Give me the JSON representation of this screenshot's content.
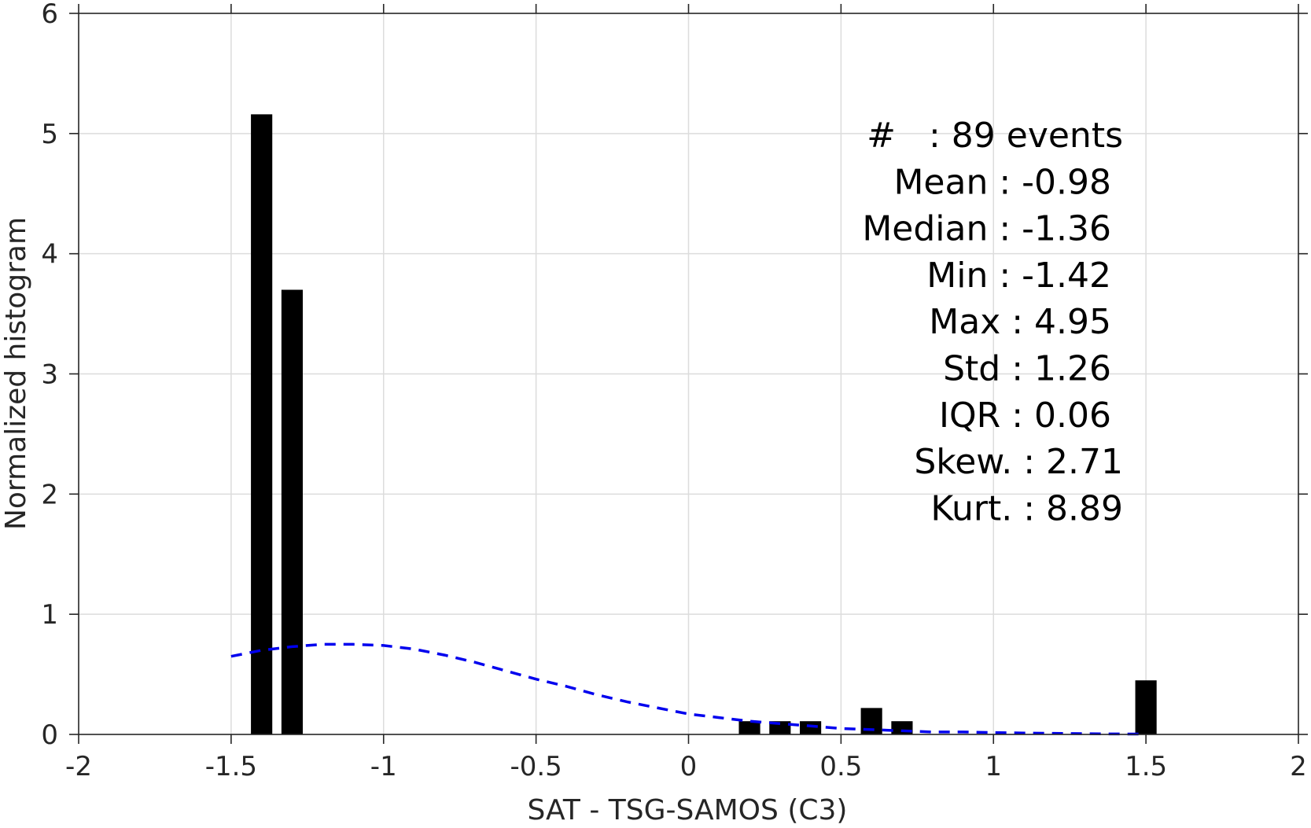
{
  "chart_data": {
    "type": "bar",
    "xlabel": "SAT - TSG-SAMOS (C3)",
    "ylabel": "Normalized histogram",
    "xlim": [
      -2,
      2
    ],
    "ylim": [
      0,
      6
    ],
    "x_ticks": [
      "-2",
      "-1.5",
      "-1",
      "-0.5",
      "0",
      "0.5",
      "1",
      "1.5",
      "2"
    ],
    "y_ticks": [
      "0",
      "1",
      "2",
      "3",
      "4",
      "5",
      "6"
    ],
    "x_tick_values": [
      -2,
      -1.5,
      -1,
      -0.5,
      0,
      0.5,
      1,
      1.5,
      2
    ],
    "y_tick_values": [
      0,
      1,
      2,
      3,
      4,
      5,
      6
    ],
    "grid": true,
    "bar_width": 0.07,
    "bars": [
      {
        "x": -1.4,
        "value": 5.16
      },
      {
        "x": -1.3,
        "value": 3.7
      },
      {
        "x": 0.2,
        "value": 0.11
      },
      {
        "x": 0.3,
        "value": 0.11
      },
      {
        "x": 0.4,
        "value": 0.11
      },
      {
        "x": 0.6,
        "value": 0.22
      },
      {
        "x": 0.7,
        "value": 0.11
      },
      {
        "x": 1.5,
        "value": 0.45
      }
    ],
    "bar_color": "#000000",
    "fit_curve": {
      "style": "dashed",
      "color": "#0000ee",
      "x": [
        -1.5,
        -1.4,
        -1.3,
        -1.2,
        -1.1,
        -1.0,
        -0.9,
        -0.8,
        -0.7,
        -0.6,
        -0.5,
        -0.4,
        -0.3,
        -0.2,
        -0.1,
        0.0,
        0.1,
        0.2,
        0.3,
        0.4,
        0.5,
        0.6,
        0.7,
        0.8,
        0.9,
        1.0,
        1.1,
        1.2,
        1.3,
        1.4,
        1.5
      ],
      "y": [
        0.65,
        0.7,
        0.73,
        0.75,
        0.75,
        0.74,
        0.71,
        0.66,
        0.6,
        0.53,
        0.46,
        0.4,
        0.33,
        0.27,
        0.22,
        0.17,
        0.14,
        0.11,
        0.09,
        0.07,
        0.05,
        0.04,
        0.03,
        0.02,
        0.02,
        0.015,
        0.012,
        0.009,
        0.006,
        0.004,
        0.003
      ]
    },
    "stats": [
      {
        "text": "#   : 89 events",
        "align": "right-outer"
      },
      {
        "text": "Mean : -0.98",
        "align": "right-inner"
      },
      {
        "text": "Median : -1.36",
        "align": "right-inner"
      },
      {
        "text": "Min : -1.42",
        "align": "right-inner"
      },
      {
        "text": "Max : 4.95",
        "align": "right-inner"
      },
      {
        "text": "Std : 1.26",
        "align": "right-inner"
      },
      {
        "text": "IQR : 0.06",
        "align": "right-inner"
      },
      {
        "text": "Skew. : 2.71",
        "align": "right-outer"
      },
      {
        "text": "Kurt. : 8.89",
        "align": "right-outer"
      }
    ]
  }
}
